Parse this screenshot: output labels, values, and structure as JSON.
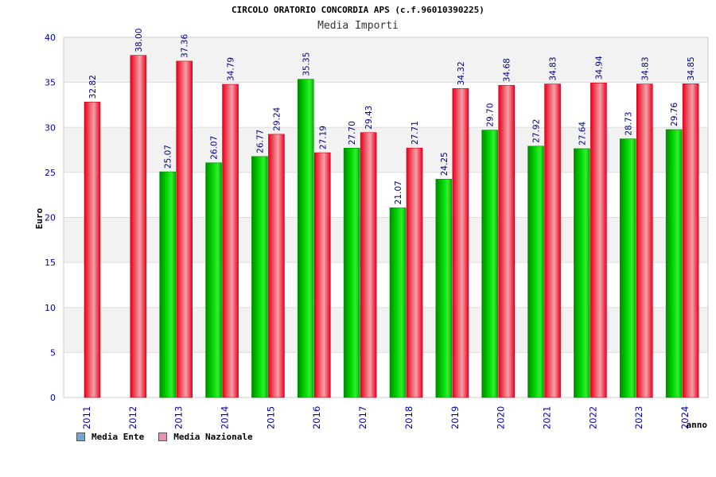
{
  "title": "CIRCOLO ORATORIO CONCORDIA APS (c.f.96010390225)",
  "subtitle": "Media Importi",
  "legend": [
    {
      "label": "Media Ente",
      "color": "#6fa8dc"
    },
    {
      "label": "Media Nazionale",
      "color": "#e88fb4"
    }
  ],
  "colors": {
    "ente": "#00c000",
    "nazionale": "#ef1f2f",
    "axis_text": "#0000aa",
    "grid": "#dddddd",
    "band": "#f2f2f2"
  },
  "chart_data": {
    "type": "bar",
    "xlabel": "anno",
    "ylabel": "Euro",
    "ylim": [
      0,
      40
    ],
    "yticks": [
      0,
      5,
      10,
      15,
      20,
      25,
      30,
      35,
      40
    ],
    "grid": true,
    "categories": [
      "2011",
      "2012",
      "2013",
      "2014",
      "2015",
      "2016",
      "2017",
      "2018",
      "2019",
      "2020",
      "2021",
      "2022",
      "2023",
      "2024"
    ],
    "series": [
      {
        "name": "Media Ente",
        "values": [
          null,
          null,
          25.07,
          26.07,
          26.77,
          35.35,
          27.7,
          21.07,
          24.25,
          29.7,
          27.92,
          27.64,
          28.73,
          29.76
        ],
        "labels": [
          "",
          "",
          "25.07",
          "26.07",
          "26.77",
          "35.35",
          "27.70",
          "21.07",
          "24.25",
          "29.70",
          "27.92",
          "27.64",
          "28.73",
          "29.76"
        ]
      },
      {
        "name": "Media Nazionale",
        "values": [
          32.82,
          38.0,
          37.36,
          34.79,
          29.24,
          27.19,
          29.43,
          27.71,
          34.32,
          34.68,
          34.83,
          34.94,
          34.83,
          34.85
        ],
        "labels": [
          "32.82",
          "38.00",
          "37.36",
          "34.79",
          "29.24",
          "27.19",
          "29.43",
          "27.71",
          "34.32",
          "34.68",
          "34.83",
          "34.94",
          "34.83",
          "34.85"
        ]
      }
    ]
  }
}
